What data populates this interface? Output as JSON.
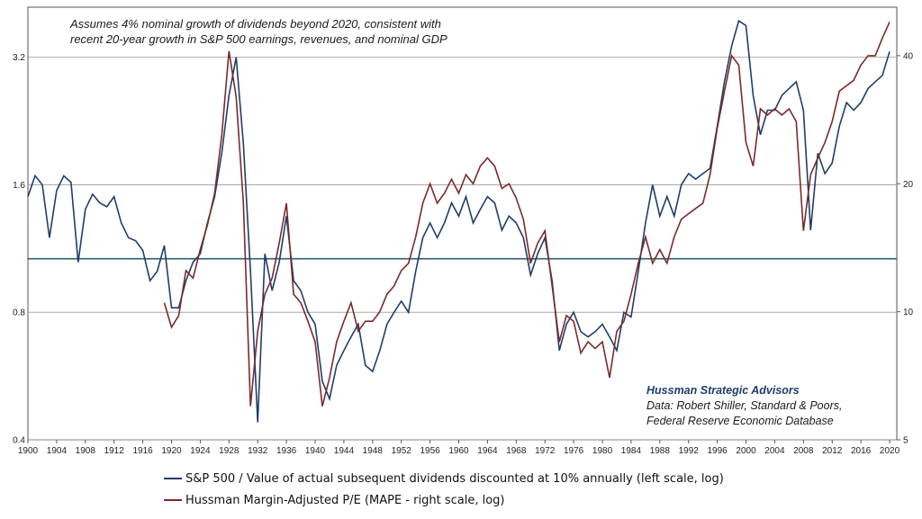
{
  "annotations": {
    "top_note_line1": "Assumes 4% nominal growth of dividends beyond 2020, consistent with",
    "top_note_line2": "recent 20-year growth in S&P 500 earnings, revenues, and nominal GDP",
    "source_brand": "Hussman Strategic Advisors",
    "source_line1": "Data: Robert Shiller, Standard & Poors,",
    "source_line2": "Federal Reserve Economic Database"
  },
  "colors": {
    "series1": "#1f3d6b",
    "series2": "#7b2a2a",
    "reference_line": "#2f5f6e",
    "grid": "#9a9a9a"
  },
  "chart_data": {
    "type": "line",
    "title": "",
    "xlabel": "",
    "ylabel_left": "",
    "ylabel_right": "",
    "x_range": [
      1900,
      2021
    ],
    "x_ticks": [
      1900,
      1904,
      1908,
      1912,
      1916,
      1920,
      1924,
      1928,
      1932,
      1936,
      1940,
      1944,
      1948,
      1952,
      1956,
      1960,
      1964,
      1968,
      1972,
      1976,
      1980,
      1984,
      1988,
      1992,
      1996,
      2000,
      2004,
      2008,
      2012,
      2016,
      2020
    ],
    "left_axis": {
      "scale": "log",
      "range": [
        0.4,
        4.2
      ],
      "ticks": [
        "0.4",
        "0.8",
        "1.6",
        "3.2"
      ]
    },
    "right_axis": {
      "scale": "log",
      "range": [
        5,
        52
      ],
      "ticks": [
        "5",
        "10",
        "20",
        "40"
      ]
    },
    "grid": "horizontal at left-axis ticks",
    "reference_line": {
      "axis": "left",
      "value": 1.07
    },
    "legend_placement": "bottom",
    "series": [
      {
        "name": "S&P 500 / Value of actual subsequent dividends discounted at 10% annually (left scale, log)",
        "axis": "left",
        "x": [
          1900,
          1901,
          1902,
          1903,
          1904,
          1905,
          1906,
          1907,
          1908,
          1909,
          1910,
          1911,
          1912,
          1913,
          1914,
          1915,
          1916,
          1917,
          1918,
          1919,
          1920,
          1921,
          1922,
          1923,
          1924,
          1925,
          1926,
          1927,
          1928,
          1929,
          1930,
          1931,
          1932,
          1933,
          1934,
          1935,
          1936,
          1937,
          1938,
          1939,
          1940,
          1941,
          1942,
          1943,
          1944,
          1945,
          1946,
          1947,
          1948,
          1949,
          1950,
          1951,
          1952,
          1953,
          1954,
          1955,
          1956,
          1957,
          1958,
          1959,
          1960,
          1961,
          1962,
          1963,
          1964,
          1965,
          1966,
          1967,
          1968,
          1969,
          1970,
          1971,
          1972,
          1973,
          1974,
          1975,
          1976,
          1977,
          1978,
          1979,
          1980,
          1981,
          1982,
          1983,
          1984,
          1985,
          1986,
          1987,
          1988,
          1989,
          1990,
          1991,
          1992,
          1993,
          1994,
          1995,
          1996,
          1997,
          1998,
          1999,
          2000,
          2001,
          2002,
          2003,
          2004,
          2005,
          2006,
          2007,
          2008,
          2009,
          2010,
          2011,
          2012,
          2013,
          2014,
          2015,
          2016,
          2017,
          2018,
          2019,
          2020
        ],
        "values": [
          1.5,
          1.68,
          1.6,
          1.2,
          1.55,
          1.68,
          1.62,
          1.05,
          1.4,
          1.52,
          1.45,
          1.42,
          1.5,
          1.3,
          1.2,
          1.18,
          1.12,
          0.95,
          1.0,
          1.15,
          0.82,
          0.82,
          0.95,
          1.05,
          1.1,
          1.3,
          1.5,
          1.9,
          2.6,
          3.2,
          2.0,
          1.0,
          0.44,
          1.1,
          0.9,
          1.05,
          1.35,
          0.95,
          0.9,
          0.8,
          0.75,
          0.55,
          0.5,
          0.6,
          0.65,
          0.7,
          0.75,
          0.6,
          0.58,
          0.65,
          0.75,
          0.8,
          0.85,
          0.8,
          1.0,
          1.2,
          1.3,
          1.2,
          1.3,
          1.45,
          1.35,
          1.5,
          1.3,
          1.4,
          1.5,
          1.45,
          1.25,
          1.35,
          1.3,
          1.2,
          0.98,
          1.1,
          1.2,
          0.95,
          0.65,
          0.75,
          0.8,
          0.72,
          0.7,
          0.72,
          0.75,
          0.7,
          0.65,
          0.8,
          0.78,
          1.0,
          1.3,
          1.6,
          1.35,
          1.5,
          1.35,
          1.6,
          1.7,
          1.65,
          1.7,
          1.75,
          2.2,
          2.8,
          3.4,
          3.9,
          3.8,
          2.6,
          2.1,
          2.4,
          2.4,
          2.6,
          2.7,
          2.8,
          2.4,
          1.25,
          1.9,
          1.7,
          1.8,
          2.2,
          2.5,
          2.4,
          2.5,
          2.7,
          2.8,
          2.9,
          3.3
        ]
      },
      {
        "name": "Hussman Margin-Adjusted P/E (MAPE - right scale, log)",
        "axis": "right",
        "x": [
          1919,
          1920,
          1921,
          1922,
          1923,
          1924,
          1925,
          1926,
          1927,
          1928,
          1929,
          1930,
          1931,
          1932,
          1933,
          1934,
          1935,
          1936,
          1937,
          1938,
          1939,
          1940,
          1941,
          1942,
          1943,
          1944,
          1945,
          1946,
          1947,
          1948,
          1949,
          1950,
          1951,
          1952,
          1953,
          1954,
          1955,
          1956,
          1957,
          1958,
          1959,
          1960,
          1961,
          1962,
          1963,
          1964,
          1965,
          1966,
          1967,
          1968,
          1969,
          1970,
          1971,
          1972,
          1973,
          1974,
          1975,
          1976,
          1977,
          1978,
          1979,
          1980,
          1981,
          1982,
          1983,
          1984,
          1985,
          1986,
          1987,
          1988,
          1989,
          1990,
          1991,
          1992,
          1993,
          1994,
          1995,
          1996,
          1997,
          1998,
          1999,
          2000,
          2001,
          2002,
          2003,
          2004,
          2005,
          2006,
          2007,
          2008,
          2009,
          2010,
          2011,
          2012,
          2013,
          2014,
          2015,
          2016,
          2017,
          2018,
          2019,
          2020
        ],
        "values": [
          10.5,
          9.2,
          9.8,
          12.5,
          12.0,
          14.0,
          16.0,
          19.0,
          26.0,
          41.0,
          32.0,
          18.0,
          6.0,
          9.0,
          11.0,
          12.0,
          14.5,
          18.0,
          11.0,
          10.5,
          9.5,
          8.5,
          6.0,
          7.0,
          8.5,
          9.5,
          10.5,
          9.0,
          9.5,
          9.5,
          10.0,
          11.0,
          11.5,
          12.5,
          13.0,
          15.0,
          18.0,
          20.0,
          18.0,
          19.0,
          20.5,
          19.0,
          21.0,
          20.0,
          22.0,
          23.0,
          22.0,
          19.5,
          20.0,
          18.5,
          16.5,
          13.0,
          14.5,
          15.5,
          11.5,
          8.5,
          9.8,
          9.5,
          8.0,
          8.5,
          8.2,
          8.5,
          7.0,
          9.0,
          9.5,
          11.0,
          13.0,
          15.0,
          13.0,
          14.0,
          13.0,
          15.0,
          16.5,
          17.0,
          17.5,
          18.0,
          21.0,
          27.0,
          33.0,
          40.0,
          38.0,
          25.0,
          22.0,
          30.0,
          29.0,
          30.0,
          29.0,
          30.0,
          28.0,
          15.5,
          21.0,
          23.0,
          25.0,
          28.0,
          33.0,
          34.0,
          35.0,
          38.0,
          40.0,
          40.0,
          44.0,
          48.0
        ]
      }
    ]
  }
}
